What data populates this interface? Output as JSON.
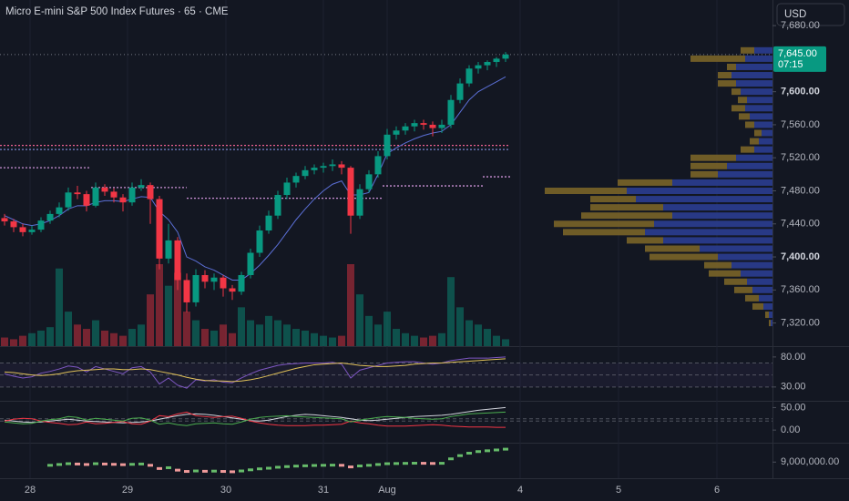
{
  "header": {
    "title": "Micro E-mini S&P 500 Index Futures · 65 · CME",
    "currency": "USD"
  },
  "chart_data": [
    {
      "type": "candlestick",
      "up_color": "#089981",
      "down_color": "#f23645",
      "open": [
        7447,
        7443,
        7436,
        7430,
        7433,
        7444,
        7452,
        7460,
        7478,
        7476,
        7462,
        7484,
        7479,
        7472,
        7466,
        7484,
        7487,
        7470,
        7398,
        7420,
        7372,
        7345,
        7378,
        7370,
        7375,
        7362,
        7358,
        7378,
        7405,
        7432,
        7450,
        7475,
        7490,
        7498,
        7505,
        7508,
        7510,
        7512,
        7508,
        7450,
        7482,
        7500,
        7522,
        7548,
        7553,
        7558,
        7562,
        7560,
        7556,
        7560,
        7590,
        7610,
        7628,
        7632,
        7636,
        7640
      ],
      "high": [
        7452,
        7446,
        7440,
        7438,
        7448,
        7456,
        7466,
        7484,
        7486,
        7480,
        7490,
        7488,
        7483,
        7476,
        7490,
        7494,
        7490,
        7474,
        7440,
        7424,
        7380,
        7385,
        7384,
        7380,
        7378,
        7366,
        7382,
        7410,
        7438,
        7456,
        7480,
        7496,
        7502,
        7510,
        7512,
        7514,
        7518,
        7516,
        7510,
        7488,
        7505,
        7528,
        7555,
        7558,
        7562,
        7566,
        7566,
        7564,
        7566,
        7596,
        7616,
        7632,
        7636,
        7638,
        7642,
        7648
      ],
      "low": [
        7438,
        7430,
        7425,
        7427,
        7430,
        7440,
        7448,
        7456,
        7470,
        7455,
        7460,
        7474,
        7466,
        7455,
        7462,
        7480,
        7440,
        7385,
        7392,
        7360,
        7333,
        7340,
        7362,
        7360,
        7352,
        7348,
        7354,
        7374,
        7400,
        7428,
        7446,
        7470,
        7484,
        7494,
        7500,
        7502,
        7504,
        7500,
        7428,
        7446,
        7478,
        7496,
        7518,
        7542,
        7548,
        7552,
        7554,
        7546,
        7550,
        7556,
        7586,
        7606,
        7622,
        7626,
        7630,
        7636
      ],
      "close": [
        7443,
        7436,
        7430,
        7433,
        7444,
        7452,
        7460,
        7478,
        7476,
        7462,
        7484,
        7479,
        7472,
        7466,
        7484,
        7487,
        7470,
        7398,
        7420,
        7372,
        7345,
        7378,
        7370,
        7375,
        7362,
        7358,
        7378,
        7405,
        7432,
        7450,
        7475,
        7490,
        7498,
        7505,
        7508,
        7510,
        7512,
        7508,
        7450,
        7482,
        7500,
        7522,
        7548,
        7553,
        7558,
        7562,
        7560,
        7556,
        7560,
        7590,
        7610,
        7628,
        7632,
        7636,
        7640,
        7645
      ],
      "volume": [
        10,
        8,
        12,
        15,
        18,
        22,
        90,
        40,
        25,
        20,
        30,
        18,
        15,
        12,
        20,
        25,
        60,
        95,
        70,
        85,
        40,
        30,
        20,
        18,
        25,
        15,
        45,
        30,
        25,
        35,
        30,
        25,
        20,
        18,
        15,
        12,
        10,
        12,
        95,
        60,
        35,
        25,
        40,
        20,
        15,
        12,
        10,
        12,
        15,
        80,
        45,
        30,
        25,
        20,
        12,
        8
      ],
      "vwap": {
        "color": "#5b6fd6",
        "values": [
          7450,
          7445,
          7440,
          7438,
          7440,
          7444,
          7450,
          7458,
          7462,
          7462,
          7466,
          7468,
          7468,
          7467,
          7470,
          7473,
          7472,
          7455,
          7445,
          7430,
          7400,
          7395,
          7388,
          7384,
          7378,
          7372,
          7372,
          7380,
          7390,
          7402,
          7415,
          7430,
          7445,
          7458,
          7470,
          7480,
          7488,
          7492,
          7475,
          7475,
          7478,
          7500,
          7525,
          7532,
          7538,
          7543,
          7547,
          7550,
          7552,
          7560,
          7575,
          7590,
          7600,
          7606,
          7612,
          7618
        ]
      },
      "pivots": [
        {
          "from": 0,
          "to": 56,
          "value": 7535,
          "color": "#f06292"
        },
        {
          "from": 0,
          "to": 56,
          "value": 7530,
          "color": "#7986cb"
        },
        {
          "from": 0,
          "to": 10,
          "value": 7508,
          "color": "#ce93d8"
        },
        {
          "from": 10,
          "to": 20.5,
          "value": 7484,
          "color": "#ce93d8"
        },
        {
          "from": 20.5,
          "to": 42,
          "value": 7471,
          "color": "#ce93d8"
        },
        {
          "from": 42,
          "to": 53,
          "value": 7486,
          "color": "#ce93d8"
        },
        {
          "from": 53,
          "to": 56,
          "value": 7497,
          "color": "#ce93d8"
        }
      ],
      "profile": {
        "up_color": "#2b3d91",
        "down_color": "#7a6428",
        "prices": [
          7320,
          7330,
          7340,
          7350,
          7360,
          7370,
          7380,
          7390,
          7400,
          7410,
          7420,
          7430,
          7440,
          7450,
          7460,
          7470,
          7480,
          7490,
          7500,
          7510,
          7520,
          7530,
          7540,
          7550,
          7560,
          7570,
          7580,
          7590,
          7600,
          7610,
          7620,
          7630,
          7640,
          7650
        ],
        "up": [
          2,
          4,
          10,
          15,
          22,
          28,
          35,
          45,
          60,
          80,
          120,
          140,
          130,
          110,
          120,
          150,
          160,
          110,
          60,
          50,
          40,
          20,
          15,
          12,
          20,
          25,
          30,
          28,
          35,
          40,
          45,
          40,
          30,
          20
        ],
        "down": [
          2,
          4,
          12,
          15,
          20,
          25,
          35,
          30,
          75,
          60,
          40,
          90,
          110,
          100,
          80,
          50,
          90,
          60,
          30,
          40,
          50,
          15,
          10,
          8,
          10,
          12,
          15,
          10,
          10,
          20,
          15,
          10,
          60,
          15
        ]
      },
      "last": {
        "value": 7645,
        "label": "7,645.00"
      },
      "countdown": "07:15",
      "ylim": [
        7292,
        7711
      ],
      "yticks": [
        {
          "value": 7320,
          "label": "7,320.00"
        },
        {
          "value": 7360,
          "label": "7,360.00"
        },
        {
          "value": 7400,
          "label": "7,400.00"
        },
        {
          "value": 7440,
          "label": "7,440.00"
        },
        {
          "value": 7480,
          "label": "7,480.00"
        },
        {
          "value": 7520,
          "label": "7,520.00"
        },
        {
          "value": 7560,
          "label": "7,560.00"
        },
        {
          "value": 7600,
          "label": "7,600.00"
        },
        {
          "value": 7680,
          "label": "7,680.00"
        }
      ],
      "xlim": [
        0,
        84.8
      ],
      "xticks": [
        {
          "value": 3.3,
          "label": "28"
        },
        {
          "value": 14,
          "label": "29"
        },
        {
          "value": 24.8,
          "label": "30"
        },
        {
          "value": 35.5,
          "label": "31"
        },
        {
          "value": 42.5,
          "label": "Aug"
        },
        {
          "value": 57.1,
          "label": "4"
        },
        {
          "value": 67.9,
          "label": "5"
        },
        {
          "value": 78.7,
          "label": "6"
        }
      ]
    },
    {
      "type": "line",
      "ylim": [
        7,
        98
      ],
      "yticks": [
        {
          "value": 80,
          "label": "80.00"
        },
        {
          "value": 30,
          "label": "30.00"
        }
      ],
      "bands": [
        70,
        50,
        30
      ],
      "band_color": "#7e57c2",
      "lines": [
        {
          "color": "#7e57c2",
          "values": [
            52,
            48,
            45,
            47,
            53,
            56,
            60,
            65,
            63,
            55,
            64,
            60,
            56,
            52,
            62,
            64,
            55,
            35,
            45,
            33,
            28,
            42,
            40,
            42,
            38,
            37,
            45,
            52,
            58,
            62,
            66,
            68,
            69,
            70,
            70,
            70,
            71,
            68,
            45,
            58,
            62,
            66,
            70,
            71,
            72,
            72,
            70,
            68,
            70,
            74,
            76,
            78,
            78,
            78,
            79,
            80
          ]
        },
        {
          "color": "#e0c158",
          "values": [
            55,
            54,
            52,
            50,
            49,
            50,
            52,
            55,
            57,
            58,
            59,
            60,
            60,
            59,
            59,
            60,
            59,
            56,
            53,
            50,
            46,
            43,
            41,
            40,
            40,
            39,
            40,
            42,
            45,
            49,
            53,
            57,
            61,
            64,
            67,
            68,
            69,
            70,
            68,
            66,
            65,
            64,
            64,
            65,
            66,
            68,
            69,
            70,
            70,
            71,
            72,
            73,
            74,
            75,
            76,
            77
          ]
        }
      ]
    },
    {
      "type": "line",
      "ylim": [
        -28,
        65
      ],
      "yticks": [
        {
          "value": 50,
          "label": "50.00"
        },
        {
          "value": 0,
          "label": "0.00"
        }
      ],
      "bands": [
        25,
        20
      ],
      "band_color": "#787b86",
      "lines": [
        {
          "color": "#d1d4dc",
          "values": [
            22,
            20,
            18,
            17,
            18,
            20,
            22,
            24,
            22,
            20,
            19,
            18,
            17,
            16,
            17,
            18,
            20,
            24,
            28,
            32,
            35,
            36,
            35,
            33,
            30,
            27,
            24,
            21,
            20,
            22,
            26,
            30,
            33,
            35,
            34,
            32,
            30,
            28,
            25,
            22,
            21,
            22,
            24,
            26,
            28,
            30,
            31,
            32,
            33,
            35,
            38,
            41,
            44,
            46,
            48,
            50
          ]
        },
        {
          "color": "#f23645",
          "values": [
            20,
            24,
            26,
            25,
            20,
            17,
            15,
            12,
            13,
            18,
            14,
            15,
            17,
            19,
            14,
            13,
            20,
            32,
            30,
            36,
            40,
            32,
            30,
            28,
            30,
            31,
            26,
            20,
            16,
            13,
            11,
            10,
            10,
            10,
            11,
            11,
            12,
            13,
            20,
            16,
            14,
            11,
            9,
            9,
            9,
            10,
            11,
            12,
            11,
            9,
            8,
            7,
            7,
            7,
            6,
            6
          ]
        },
        {
          "color": "#4caf50",
          "values": [
            18,
            16,
            14,
            15,
            20,
            23,
            25,
            30,
            28,
            22,
            26,
            24,
            22,
            20,
            26,
            27,
            22,
            13,
            16,
            12,
            10,
            14,
            15,
            16,
            14,
            13,
            18,
            24,
            28,
            30,
            31,
            32,
            30,
            29,
            28,
            27,
            26,
            25,
            18,
            22,
            25,
            28,
            30,
            29,
            28,
            26,
            25,
            24,
            25,
            30,
            33,
            36,
            37,
            38,
            39,
            40
          ]
        }
      ]
    },
    {
      "type": "dots",
      "ylim": [
        8000000,
        10200000
      ],
      "yticks": [
        {
          "value": 9000000,
          "label": "9,000,000.00"
        }
      ],
      "up_color": "#66bb6a",
      "down_color": "#ef9a9a",
      "values": [
        null,
        null,
        null,
        null,
        null,
        8800000,
        8850000,
        8900000,
        8880000,
        8850000,
        8900000,
        8880000,
        8860000,
        8840000,
        8860000,
        8880000,
        8800000,
        8600000,
        8650000,
        8500000,
        8420000,
        8450000,
        8430000,
        8440000,
        8420000,
        8400000,
        8450000,
        8520000,
        8580000,
        8620000,
        8680000,
        8720000,
        8750000,
        8770000,
        8790000,
        8800000,
        8810000,
        8800000,
        8700000,
        8760000,
        8800000,
        8850000,
        8900000,
        8910000,
        8920000,
        8930000,
        8925000,
        8915000,
        8925000,
        9200000,
        9400000,
        9550000,
        9650000,
        9700000,
        9750000,
        9800000
      ]
    }
  ]
}
